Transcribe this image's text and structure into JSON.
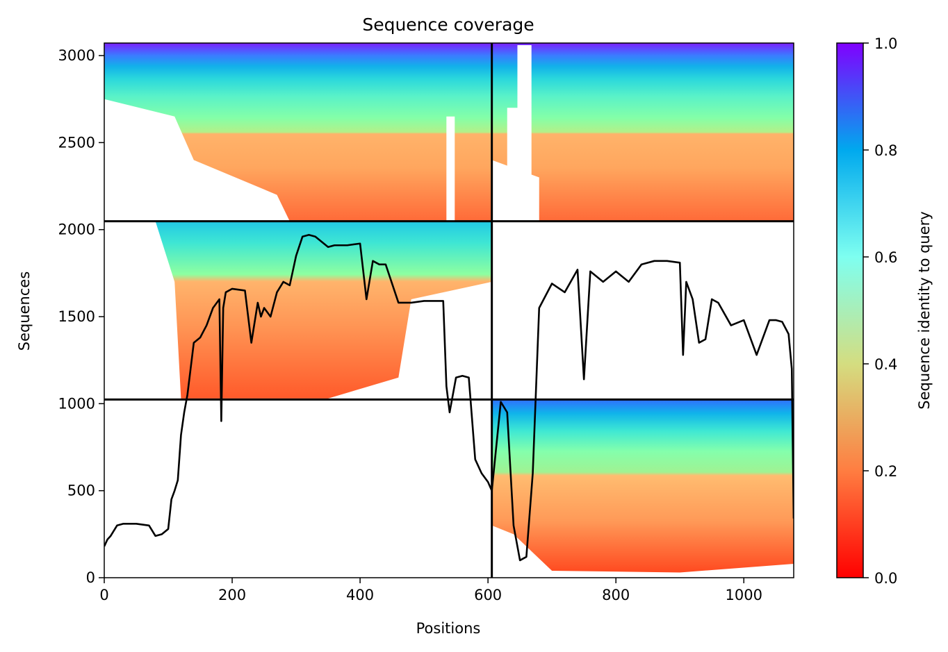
{
  "chart_data": {
    "type": "heatmap",
    "title": "Sequence coverage",
    "xlabel": "Positions",
    "ylabel": "Sequences",
    "xlim": [
      0,
      1078
    ],
    "ylim": [
      0,
      3072
    ],
    "xticks": [
      0,
      200,
      400,
      600,
      800,
      1000
    ],
    "yticks": [
      0,
      500,
      1000,
      1500,
      2000,
      2500,
      3000
    ],
    "colormap": "rainbow_r",
    "colorbar": {
      "label": "Sequence identity to query",
      "range": [
        0.0,
        1.0
      ],
      "ticks": [
        "0.0",
        "0.2",
        "0.4",
        "0.6",
        "0.8",
        "1.0"
      ],
      "stops": [
        "#ff0000",
        "#ff7d41",
        "#d4dd80",
        "#7efff0",
        "#00a9ee",
        "#8000ff"
      ]
    },
    "domain_boundaries": {
      "x": [
        606
      ],
      "y": [
        1024,
        2048
      ]
    },
    "blocks": [
      {
        "x": [
          0,
          606
        ],
        "y": [
          2048,
          3072
        ],
        "identity_top": 1.0,
        "identity_bottom": 0.1
      },
      {
        "x": [
          606,
          1078
        ],
        "y": [
          2048,
          3072
        ],
        "identity_top": 1.0,
        "identity_bottom": 0.1
      },
      {
        "x": [
          0,
          606
        ],
        "y": [
          1024,
          2048
        ],
        "identity_top": 0.7,
        "identity_bottom": 0.1
      },
      {
        "x": [
          606,
          1078
        ],
        "y": [
          0,
          1024
        ],
        "identity_top": 0.95,
        "identity_bottom": 0.1
      }
    ],
    "coverage_line": {
      "color": "#000000",
      "x": [
        0,
        5,
        10,
        20,
        30,
        50,
        70,
        80,
        90,
        100,
        105,
        110,
        115,
        120,
        125,
        130,
        140,
        150,
        160,
        170,
        180,
        183,
        186,
        190,
        200,
        220,
        230,
        240,
        245,
        250,
        260,
        270,
        280,
        290,
        300,
        310,
        320,
        330,
        350,
        360,
        380,
        400,
        410,
        420,
        430,
        440,
        460,
        480,
        500,
        520,
        530,
        535,
        540,
        550,
        560,
        570,
        580,
        590,
        600,
        606,
        620,
        630,
        640,
        650,
        660,
        670,
        680,
        700,
        720,
        740,
        750,
        760,
        780,
        800,
        820,
        840,
        860,
        880,
        900,
        905,
        910,
        920,
        930,
        940,
        950,
        960,
        980,
        1000,
        1020,
        1040,
        1050,
        1060,
        1070,
        1075,
        1078
      ],
      "y": [
        180,
        220,
        240,
        300,
        310,
        310,
        300,
        240,
        250,
        280,
        450,
        500,
        560,
        820,
        950,
        1050,
        1350,
        1380,
        1450,
        1550,
        1600,
        900,
        1550,
        1640,
        1660,
        1650,
        1350,
        1580,
        1500,
        1550,
        1500,
        1640,
        1700,
        1680,
        1850,
        1960,
        1970,
        1960,
        1900,
        1910,
        1910,
        1920,
        1600,
        1820,
        1800,
        1800,
        1580,
        1580,
        1590,
        1590,
        1590,
        1100,
        950,
        1150,
        1160,
        1150,
        680,
        600,
        550,
        500,
        1010,
        950,
        300,
        100,
        120,
        600,
        1550,
        1690,
        1640,
        1770,
        1140,
        1760,
        1700,
        1760,
        1700,
        1800,
        1820,
        1820,
        1810,
        1280,
        1700,
        1600,
        1350,
        1370,
        1600,
        1580,
        1450,
        1480,
        1280,
        1480,
        1480,
        1470,
        1400,
        1200,
        340
      ]
    }
  }
}
